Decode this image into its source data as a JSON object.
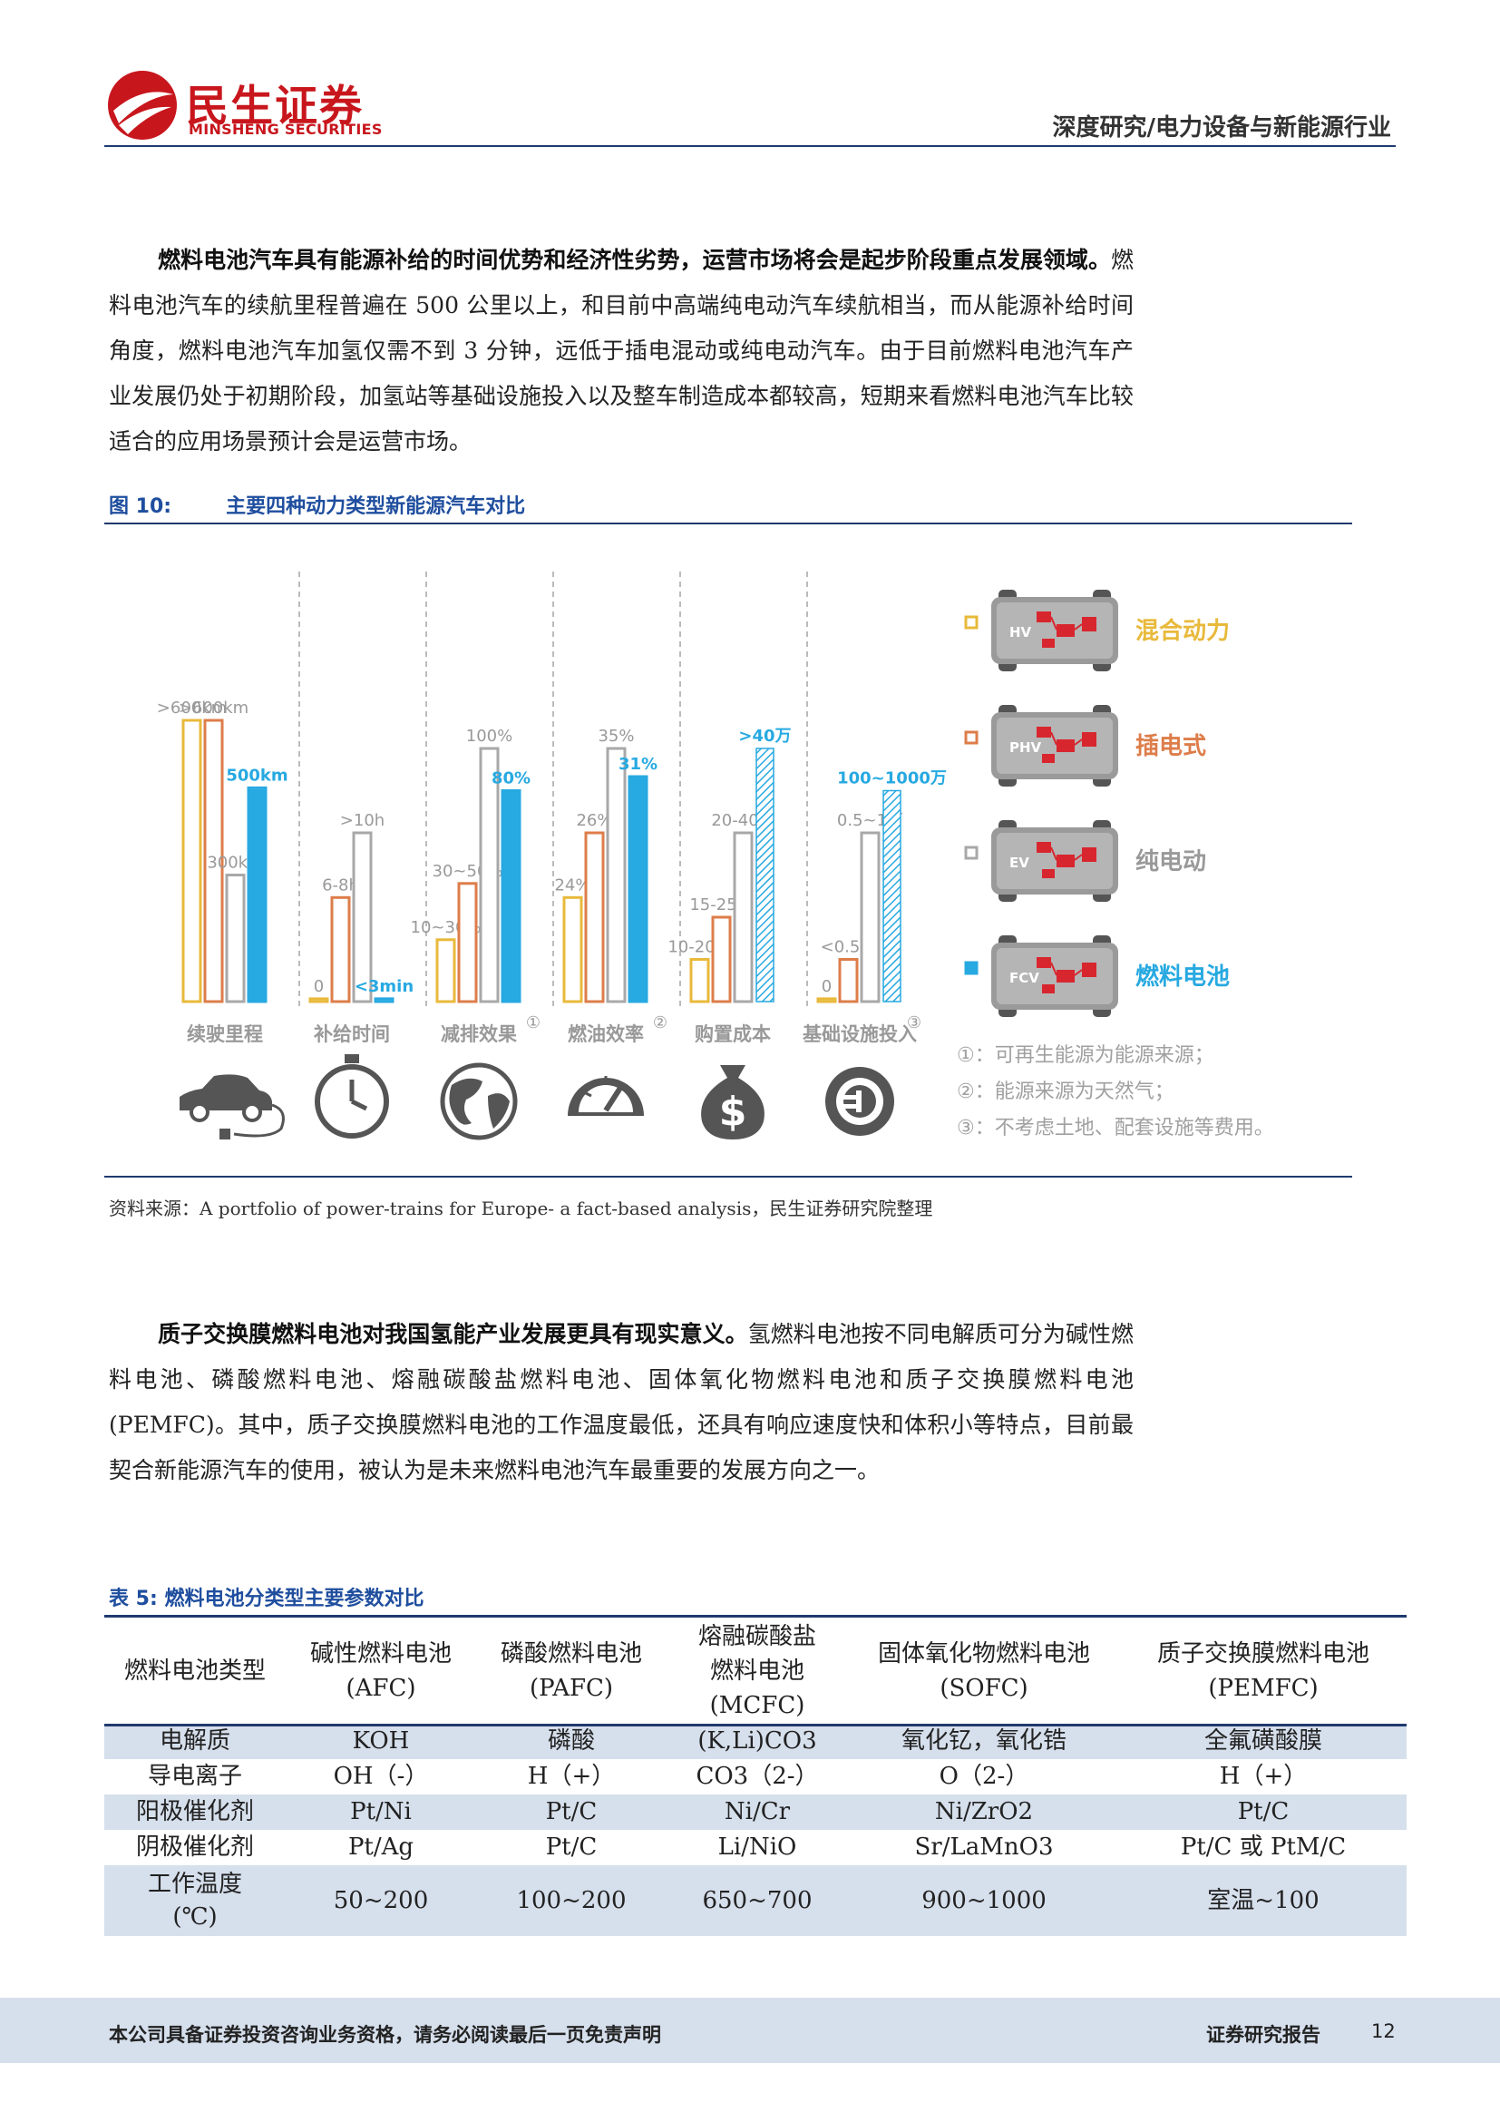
{
  "header": {
    "logo_cn": "民生证券",
    "logo_en": "MINSHENG SECURITIES",
    "category": "深度研究/电力设备与新能源行业"
  },
  "paragraph1": {
    "bold": "燃料电池汽车具有能源补给的时间优势和经济性劣势，运营市场将会是起步阶段重点发展领域。",
    "text": "燃料电池汽车的续航里程普遍在 500 公里以上，和目前中高端纯电动汽车续航相当，而从能源补给时间角度，燃料电池汽车加氢仅需不到 3 分钟，远低于插电混动或纯电动汽车。由于目前燃料电池汽车产业发展仍处于初期阶段，加氢站等基础设施投入以及整车制造成本都较高，短期来看燃料电池汽车比较适合的应用场景预计会是运营市场。"
  },
  "figure": {
    "label": "图 10:",
    "title": "主要四种动力类型新能源汽车对比",
    "source": "资料来源：A portfolio of power-trains for Europe- a fact-based analysis，民生证券研究院整理"
  },
  "chart_data": {
    "type": "bar",
    "categories": [
      "续驶里程",
      "补给时间",
      "减排效果",
      "燃油效率",
      "购置成本",
      "基础设施投入"
    ],
    "category_notes": [
      "",
      "",
      "①",
      "②",
      "",
      "③"
    ],
    "series": [
      {
        "name": "混合动力",
        "code": "HV",
        "color": "#e8b93b",
        "labels": [
          ">600km",
          "0",
          "10~30%",
          "24%",
          "10-20万",
          "0"
        ],
        "values": [
          100,
          1,
          22,
          37,
          15,
          1
        ]
      },
      {
        "name": "插电式",
        "code": "PHV",
        "color": "#dd7d4a",
        "labels": [
          ">600km",
          "6-8h",
          "30~50%",
          "26%",
          "15-25万",
          "<0.5万"
        ],
        "values": [
          100,
          37,
          42,
          60,
          30,
          15
        ]
      },
      {
        "name": "纯电动",
        "code": "EV",
        "color": "#a8a8a8",
        "labels": [
          "300km",
          ">10h",
          "100%",
          "35%",
          "20-40万",
          "0.5~1万"
        ],
        "values": [
          45,
          60,
          90,
          90,
          60,
          60
        ]
      },
      {
        "name": "燃料电池",
        "code": "FCV",
        "color": "#27a9e1",
        "labels": [
          "500km",
          "<3min",
          "80%",
          "31%",
          ">40万",
          "100~1000万"
        ],
        "values": [
          76,
          1,
          75,
          80,
          90,
          75
        ]
      }
    ],
    "notes": [
      "①：可再生能源为能源来源；",
      "②：能源来源为天然气；",
      "③：不考虑土地、配套设施等费用。"
    ],
    "icons": [
      "car-plug-icon",
      "stopwatch-icon",
      "globe-icon",
      "gauge-icon",
      "money-bag-icon",
      "plug-socket-icon"
    ]
  },
  "paragraph2": {
    "bold": "质子交换膜燃料电池对我国氢能产业发展更具有现实意义。",
    "text": "氢燃料电池按不同电解质可分为碱性燃料电池、磷酸燃料电池、熔融碳酸盐燃料电池、固体氧化物燃料电池和质子交换膜燃料电池(PEMFC)。其中，质子交换膜燃料电池的工作温度最低，还具有响应速度快和体积小等特点，目前最契合新能源汽车的使用，被认为是未来燃料电池汽车最重要的发展方向之一。"
  },
  "table": {
    "label": "表 5:",
    "title": "燃料电池分类型主要参数对比",
    "headers": [
      "燃料电池类型",
      "碱性燃料电池\n(AFC)",
      "磷酸燃料电池\n(PAFC)",
      "熔融碳酸盐\n燃料电池\n(MCFC)",
      "固体氧化物燃料电池\n(SOFC)",
      "质子交换膜燃料电池\n(PEMFC)"
    ],
    "rows": [
      [
        "电解质",
        "KOH",
        "磷酸",
        "(K,Li)CO3",
        "氧化钇，氧化锆",
        "全氟磺酸膜"
      ],
      [
        "导电离子",
        "OH（-）",
        "H（+）",
        "CO3（2-）",
        "O（2-）",
        "H（+）"
      ],
      [
        "阳极催化剂",
        "Pt/Ni",
        "Pt/C",
        "Ni/Cr",
        "Ni/ZrO2",
        "Pt/C"
      ],
      [
        "阴极催化剂",
        "Pt/Ag",
        "Pt/C",
        "Li/NiO",
        "Sr/LaMnO3",
        "Pt/C 或 PtM/C"
      ],
      [
        "工作温度\n(℃)",
        "50~200",
        "100~200",
        "650~700",
        "900~1000",
        "室温~100"
      ]
    ]
  },
  "footer": {
    "disclaimer": "本公司具备证券投资咨询业务资格，请务必阅读最后一页免责声明",
    "report_type": "证券研究报告",
    "page": "12"
  }
}
